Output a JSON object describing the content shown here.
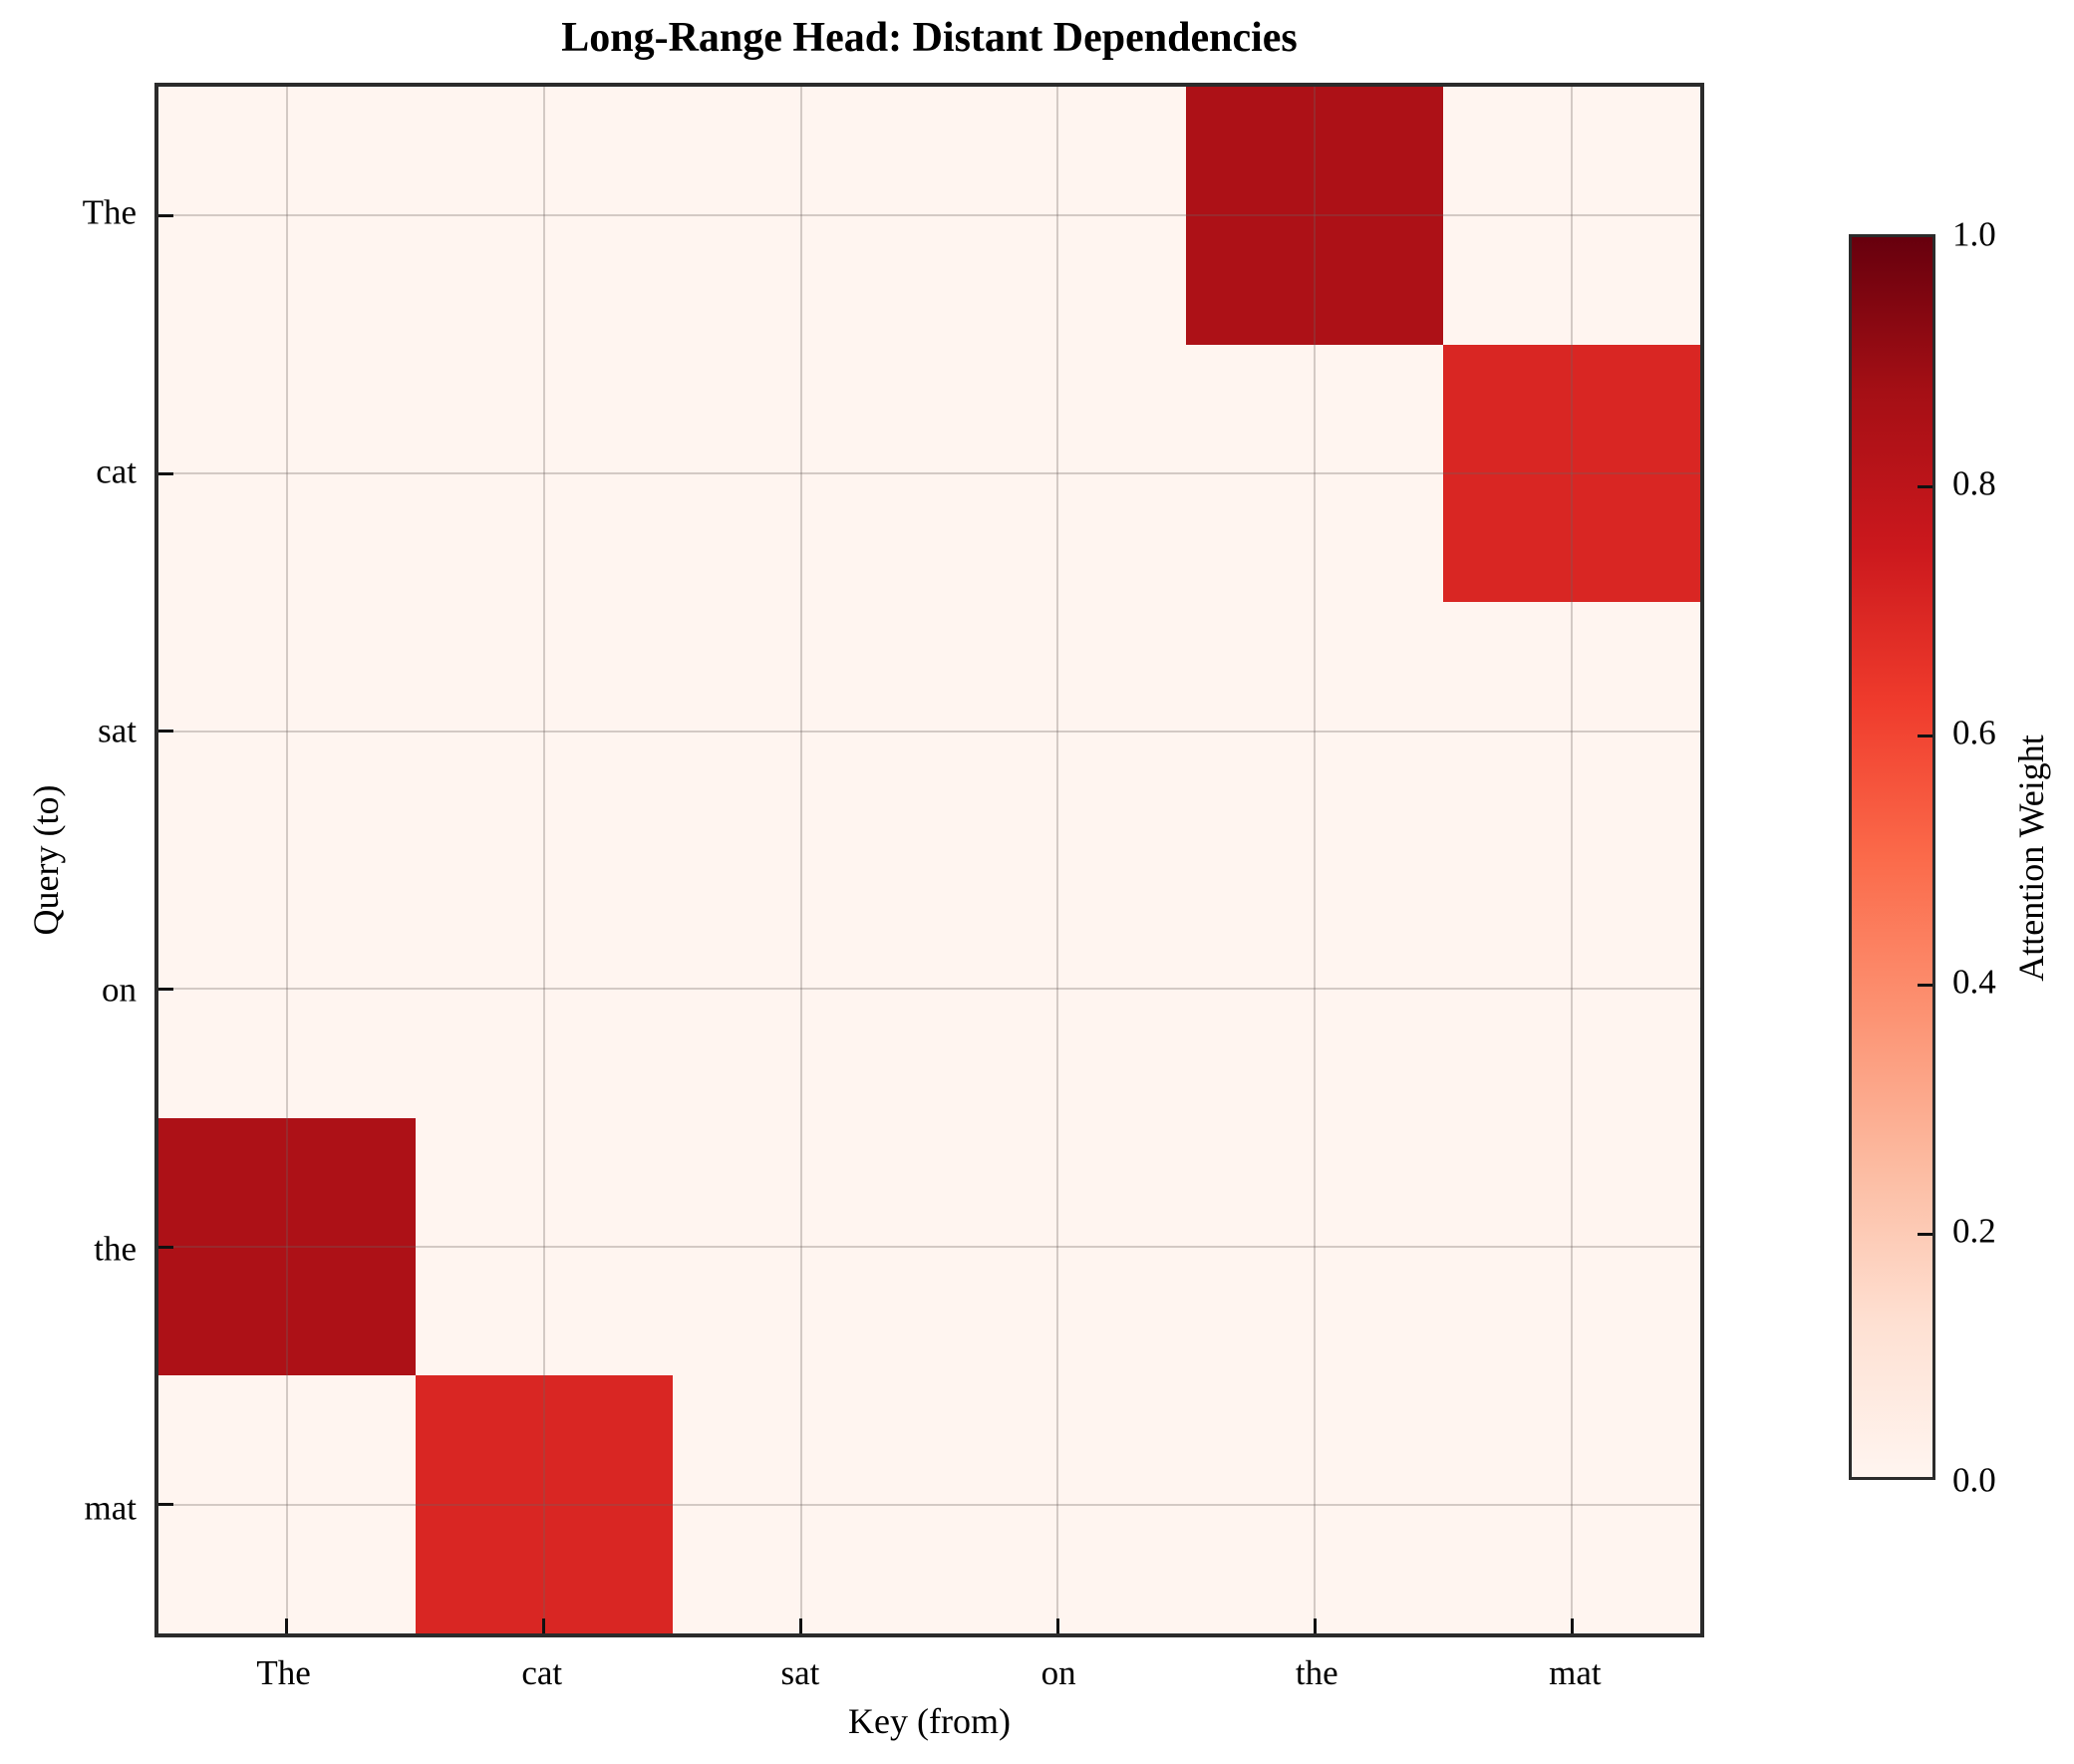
{
  "chart_data": {
    "type": "heatmap",
    "title": "Long-Range Head: Distant Dependencies",
    "xlabel": "Key (from)",
    "ylabel": "Query (to)",
    "x_tick_labels": [
      "The",
      "cat",
      "sat",
      "on",
      "the",
      "mat"
    ],
    "y_tick_labels": [
      "The",
      "cat",
      "sat",
      "on",
      "the",
      "mat"
    ],
    "matrix": [
      [
        0.0,
        0.0,
        0.0,
        0.0,
        0.85,
        0.0
      ],
      [
        0.0,
        0.0,
        0.0,
        0.0,
        0.0,
        0.7
      ],
      [
        0.0,
        0.0,
        0.0,
        0.0,
        0.0,
        0.0
      ],
      [
        0.0,
        0.0,
        0.0,
        0.0,
        0.0,
        0.0
      ],
      [
        0.85,
        0.0,
        0.0,
        0.0,
        0.0,
        0.0
      ],
      [
        0.0,
        0.7,
        0.0,
        0.0,
        0.0,
        0.0
      ]
    ],
    "vmin": 0.0,
    "vmax": 1.0,
    "colormap": "Reds",
    "grid": "on",
    "colorbar": {
      "label": "Attention Weight",
      "ticks": [
        {
          "label": "1.0",
          "value": 1.0
        },
        {
          "label": "0.8",
          "value": 0.8
        },
        {
          "label": "0.6",
          "value": 0.6
        },
        {
          "label": "0.4",
          "value": 0.4
        },
        {
          "label": "0.2",
          "value": 0.2
        },
        {
          "label": "0.0",
          "value": 0.0
        }
      ]
    }
  },
  "colors": {
    "reds_colormap_stops": [
      [
        0.0,
        "#fff5f0"
      ],
      [
        0.125,
        "#fee0d2"
      ],
      [
        0.25,
        "#fcbba1"
      ],
      [
        0.375,
        "#fc9272"
      ],
      [
        0.5,
        "#fb6a4a"
      ],
      [
        0.625,
        "#ef3b2c"
      ],
      [
        0.75,
        "#cb181d"
      ],
      [
        0.875,
        "#a50f15"
      ],
      [
        1.0,
        "#67000d"
      ]
    ],
    "spine": "#2b2b2b",
    "tick": "#111111",
    "gridline": "rgba(110,100,95,0.30)",
    "background": "#ffffff"
  }
}
